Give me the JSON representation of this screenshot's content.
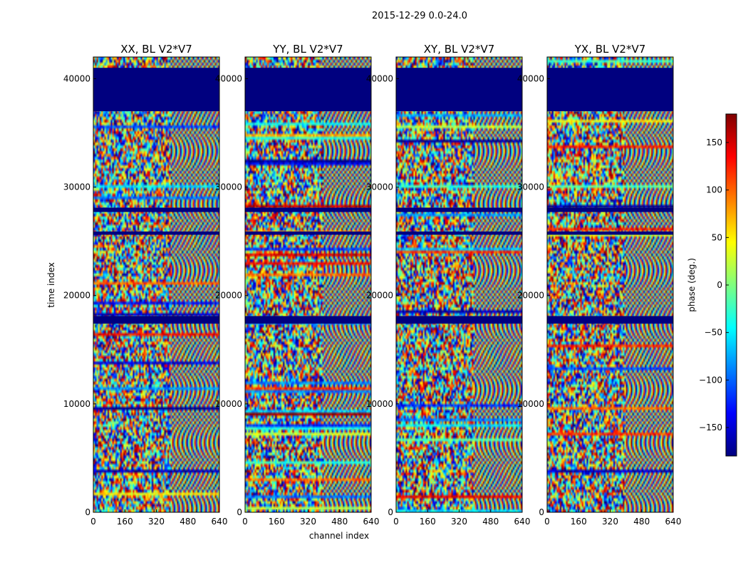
{
  "chart_data": {
    "type": "heatmap",
    "title": "2015-12-29 0.0-24.0",
    "xlabel": "channel index",
    "ylabel": "time index",
    "xlim": [
      0,
      640
    ],
    "ylim": [
      0,
      42000
    ],
    "xticks": [
      0,
      160,
      320,
      480,
      640
    ],
    "yticks": [
      0,
      10000,
      20000,
      30000,
      40000
    ],
    "panels": [
      {
        "title": "XX, BL V2*V7"
      },
      {
        "title": "YY, BL V2*V7"
      },
      {
        "title": "XY, BL V2*V7"
      },
      {
        "title": "YX, BL V2*V7"
      }
    ],
    "colorbar": {
      "label": "phase (deg.)",
      "range": [
        -180,
        180
      ],
      "ticks": [
        -150,
        -100,
        -50,
        0,
        50,
        100,
        150
      ],
      "tick_labels": [
        "−150",
        "−100",
        "−50",
        "0",
        "50",
        "100",
        "150"
      ],
      "colormap": [
        "#00007f",
        "#0000ff",
        "#007fff",
        "#00ffff",
        "#7fff7f",
        "#ffff00",
        "#ff7f00",
        "#ff0000",
        "#7f0000"
      ]
    },
    "masked_time_ranges": [
      {
        "range": [
          37000,
          41000
        ],
        "phase": -180
      },
      {
        "range": [
          27700,
          28100
        ],
        "phase": -180
      },
      {
        "range": [
          25600,
          25900
        ],
        "phase": -180
      },
      {
        "range": [
          17400,
          18100
        ],
        "phase": -180
      }
    ]
  }
}
